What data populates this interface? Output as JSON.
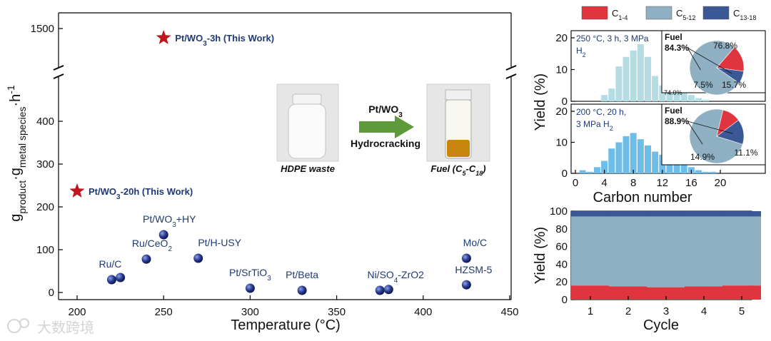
{
  "chart_data": [
    {
      "type": "scatter",
      "xlabel": "Temperature (°C)",
      "ylabel": "g_product·g_metal species^-1·h^-1",
      "xlim": [
        200,
        450
      ],
      "ylim": [
        0,
        1500
      ],
      "x_ticks": [
        "200",
        "250",
        "300",
        "350",
        "400",
        "450"
      ],
      "y_ticks": [
        "0",
        "100",
        "200",
        "300",
        "400",
        "1500"
      ],
      "axis_break": "between 450 and 1500",
      "points": [
        {
          "label": "Ru/C",
          "x": 220,
          "y": 30
        },
        {
          "label": "",
          "x": 225,
          "y": 35
        },
        {
          "label": "Ru/CeO2",
          "x": 240,
          "y": 78
        },
        {
          "label": "Pt/WO3+HY",
          "x": 250,
          "y": 135
        },
        {
          "label": "Pt/H-USY",
          "x": 270,
          "y": 80
        },
        {
          "label": "Pt/SrTiO3",
          "x": 300,
          "y": 10
        },
        {
          "label": "Pt/Beta",
          "x": 330,
          "y": 5
        },
        {
          "label": "Ni/SO4-ZrO2",
          "x": 375,
          "y": 5
        },
        {
          "label": "",
          "x": 380,
          "y": 7
        },
        {
          "label": "Mo/C",
          "x": 425,
          "y": 80
        },
        {
          "label": "HZSM-5",
          "x": 425,
          "y": 18
        }
      ],
      "highlights": [
        {
          "label": "Pt/WO3-3h (This Work)",
          "x": 250,
          "y": 1450
        },
        {
          "label": "Pt/WO3-20h (This Work)",
          "x": 200,
          "y": 235
        }
      ]
    },
    {
      "type": "bar",
      "title": "250 °C, 3 h, 3 MPa H2",
      "xlabel": "Carbon number",
      "ylabel": "Yield (%)",
      "ylim": [
        0,
        20
      ],
      "x_ticks": [
        "0",
        "4",
        "8",
        "12",
        "16",
        "20"
      ],
      "x": [
        4,
        5,
        6,
        7,
        8,
        9,
        10,
        11,
        12,
        13,
        14,
        15,
        16,
        17,
        18
      ],
      "values": [
        2,
        4,
        11,
        14,
        16,
        18,
        14,
        8,
        5,
        5,
        4,
        3,
        2,
        1,
        0.5
      ],
      "pie": {
        "labels": [
          "C5-12",
          "C1-4",
          "C13-18"
        ],
        "values": [
          76.8,
          15.7,
          7.5
        ],
        "fuel_label": "Fuel",
        "fuel_value": "84.3%"
      },
      "note": "74.0%"
    },
    {
      "type": "bar",
      "title": "200 °C, 20 h, 3 MPa H2",
      "xlabel": "Carbon number",
      "ylabel": "Yield (%)",
      "ylim": [
        0,
        20
      ],
      "x_ticks": [
        "0",
        "4",
        "8",
        "12",
        "16",
        "20"
      ],
      "x": [
        1,
        2,
        3,
        4,
        5,
        6,
        7,
        8,
        9,
        10,
        11,
        12,
        13,
        14,
        15,
        16,
        17,
        18,
        19
      ],
      "values": [
        1,
        0.5,
        2,
        4,
        8,
        10,
        12,
        13,
        11,
        9,
        7,
        6,
        5,
        5,
        4,
        2,
        1,
        0.5,
        0.5
      ],
      "pie": {
        "labels": [
          "C5-12",
          "C1-4",
          "C13-18"
        ],
        "values": [
          74.0,
          11.1,
          14.9
        ],
        "fuel_label": "Fuel",
        "fuel_value": "88.9%"
      }
    },
    {
      "type": "bar",
      "stacked": true,
      "xlabel": "Cycle",
      "ylabel": "Yield (%)",
      "ylim": [
        0,
        100
      ],
      "categories": [
        "1",
        "2",
        "3",
        "4",
        "5"
      ],
      "y_ticks": [
        "0",
        "20",
        "40",
        "60",
        "80",
        "100"
      ],
      "series": [
        {
          "name": "C1-4",
          "values": [
            16,
            15,
            14,
            15,
            16
          ]
        },
        {
          "name": "C5-12",
          "values": [
            78,
            79,
            80,
            79,
            78
          ]
        },
        {
          "name": "C13-18",
          "values": [
            6,
            6,
            6,
            6,
            6
          ]
        }
      ]
    }
  ],
  "legend": {
    "items": [
      {
        "name": "C1-4",
        "label_main": "C",
        "label_sub": "1-4",
        "color": "#e0353f"
      },
      {
        "name": "C5-12",
        "label_main": "C",
        "label_sub": "5-12",
        "color": "#8fb0c2"
      },
      {
        "name": "C13-18",
        "label_main": "C",
        "label_sub": "13-18",
        "color": "#3a5796"
      }
    ]
  },
  "colors": {
    "c14": "#e0353f",
    "c512": "#8fb0c2",
    "c1318": "#3a5796",
    "dist1": "#b3dde3",
    "dist2": "#6ebde8",
    "star": "#c0151f",
    "ball": "#2d3f95"
  },
  "inset": {
    "label_left": "HDPE waste",
    "label_right_main": "Fuel (C",
    "label_right_sub1": "5",
    "label_right_mid": "-C",
    "label_right_sub2": "18",
    "label_right_end": ")",
    "arrow_top": "Pt/WO",
    "arrow_top_sub": "3",
    "arrow_bottom": "Hydrocracking"
  },
  "watermark": "大数跨境"
}
